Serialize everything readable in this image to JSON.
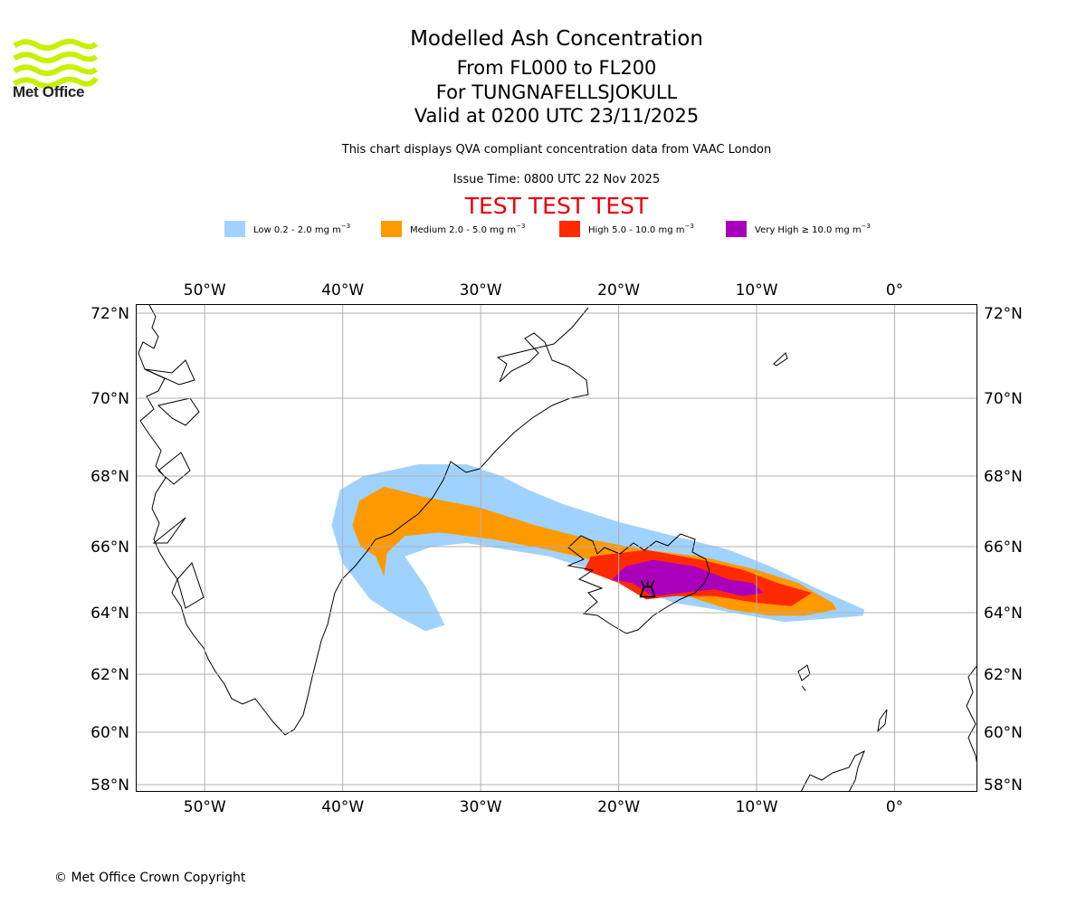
{
  "header": {
    "logo_text": "Met Office",
    "title": "Modelled Ash Concentration",
    "level_range": "From FL000 to FL200",
    "volcano": "For TUNGNAFELLSJOKULL",
    "valid_time": "Valid at 0200 UTC 23/11/2025",
    "subtitle": "This chart displays QVA compliant concentration data from VAAC London",
    "issue_time": "Issue Time: 0800 UTC 22 Nov 2025",
    "test_banner": "TEST TEST TEST"
  },
  "legend": [
    {
      "label": "Low 0.2 - 2.0 mg m",
      "unit_exp": "−3",
      "color": "#a0d2ff"
    },
    {
      "label": "Medium 2.0 - 5.0 mg m",
      "unit_exp": "−3",
      "color": "#ff9900"
    },
    {
      "label": "High 5.0 - 10.0 mg m",
      "unit_exp": "−3",
      "color": "#ff2a00"
    },
    {
      "label": "Very High ≥ 10.0 mg m",
      "unit_exp": "−3",
      "color": "#aa00bb"
    }
  ],
  "footer": {
    "copyright": "© Met Office Crown Copyright"
  },
  "chart_data": {
    "type": "heatmap",
    "title": "Modelled Ash Concentration",
    "map_extent": {
      "lon": [
        -55,
        6
      ],
      "lat": [
        57.8,
        72.2
      ]
    },
    "lon_ticks": [
      -50,
      -40,
      -30,
      -20,
      -10,
      0
    ],
    "lon_tick_labels": [
      "50°W",
      "40°W",
      "30°W",
      "20°W",
      "10°W",
      "0°"
    ],
    "lat_ticks": [
      58,
      60,
      62,
      64,
      66,
      68,
      70,
      72
    ],
    "lat_tick_labels": [
      "58°N",
      "60°N",
      "62°N",
      "64°N",
      "66°N",
      "68°N",
      "70°N",
      "72°N"
    ],
    "grid": true,
    "volcano_marker": {
      "name": "TUNGNAFELLSJOKULL",
      "lon": -17.9,
      "lat": 64.7
    },
    "concentration_levels": [
      {
        "level": "Low",
        "range_mg_m3": "0.2 - 2.0",
        "color": "#a0d2ff",
        "polygon": [
          [
            -40.8,
            66.6
          ],
          [
            -40.2,
            67.6
          ],
          [
            -38.5,
            68.0
          ],
          [
            -34.5,
            68.3
          ],
          [
            -31.0,
            68.3
          ],
          [
            -28.5,
            68.0
          ],
          [
            -26.5,
            67.6
          ],
          [
            -24,
            67.2
          ],
          [
            -20,
            66.7
          ],
          [
            -16,
            66.3
          ],
          [
            -12,
            65.9
          ],
          [
            -9,
            65.4
          ],
          [
            -5.5,
            64.7
          ],
          [
            -2.2,
            64.1
          ],
          [
            -2.3,
            63.9
          ],
          [
            -5,
            63.8
          ],
          [
            -8,
            63.7
          ],
          [
            -10.5,
            63.9
          ],
          [
            -13,
            64.1
          ],
          [
            -16,
            64.3
          ],
          [
            -19,
            64.8
          ],
          [
            -22,
            65.3
          ],
          [
            -25,
            65.7
          ],
          [
            -28,
            65.9
          ],
          [
            -31,
            66.1
          ],
          [
            -33.5,
            66.0
          ],
          [
            -35.5,
            65.7
          ],
          [
            -34.0,
            64.8
          ],
          [
            -32.6,
            63.6
          ],
          [
            -34.0,
            63.4
          ],
          [
            -36.5,
            64.0
          ],
          [
            -38.0,
            64.4
          ],
          [
            -40.0,
            65.5
          ]
        ]
      },
      {
        "level": "Medium",
        "range_mg_m3": "2.0 - 5.0",
        "color": "#ff9900",
        "polygon": [
          [
            -39.3,
            66.6
          ],
          [
            -38.8,
            67.3
          ],
          [
            -37.0,
            67.7
          ],
          [
            -34.0,
            67.4
          ],
          [
            -30.0,
            67.1
          ],
          [
            -26.0,
            66.6
          ],
          [
            -22,
            66.2
          ],
          [
            -18,
            65.9
          ],
          [
            -14,
            65.7
          ],
          [
            -10,
            65.3
          ],
          [
            -7,
            64.9
          ],
          [
            -4.5,
            64.3
          ],
          [
            -4.2,
            64.1
          ],
          [
            -6.5,
            63.9
          ],
          [
            -9.0,
            63.9
          ],
          [
            -12,
            64.1
          ],
          [
            -15,
            64.5
          ],
          [
            -18,
            65.0
          ],
          [
            -21,
            65.5
          ],
          [
            -25,
            65.9
          ],
          [
            -29,
            66.2
          ],
          [
            -33.0,
            66.4
          ],
          [
            -35.5,
            66.3
          ],
          [
            -36.8,
            65.8
          ],
          [
            -37.0,
            65.1
          ],
          [
            -37.6,
            65.7
          ],
          [
            -38.7,
            66.0
          ]
        ]
      },
      {
        "level": "High",
        "range_mg_m3": "5.0 - 10.0",
        "color": "#ff2a00",
        "polygon": [
          [
            -22,
            65.7
          ],
          [
            -18,
            65.9
          ],
          [
            -14,
            65.6
          ],
          [
            -11,
            65.3
          ],
          [
            -8.5,
            64.9
          ],
          [
            -6,
            64.6
          ],
          [
            -7.5,
            64.2
          ],
          [
            -10,
            64.3
          ],
          [
            -13,
            64.5
          ],
          [
            -16,
            64.5
          ],
          [
            -18,
            64.4
          ],
          [
            -20,
            64.9
          ],
          [
            -22.5,
            65.3
          ]
        ]
      },
      {
        "level": "Very High",
        "range_mg_m3": "≥ 10.0",
        "color": "#aa00bb",
        "polygon": [
          [
            -19.5,
            65.4
          ],
          [
            -17.5,
            65.6
          ],
          [
            -14.5,
            65.4
          ],
          [
            -12,
            65.0
          ],
          [
            -10.3,
            64.9
          ],
          [
            -9.5,
            64.6
          ],
          [
            -11,
            64.5
          ],
          [
            -13,
            64.7
          ],
          [
            -15.5,
            64.6
          ],
          [
            -17.5,
            64.5
          ],
          [
            -19,
            64.9
          ],
          [
            -20.5,
            65.0
          ]
        ]
      }
    ]
  }
}
